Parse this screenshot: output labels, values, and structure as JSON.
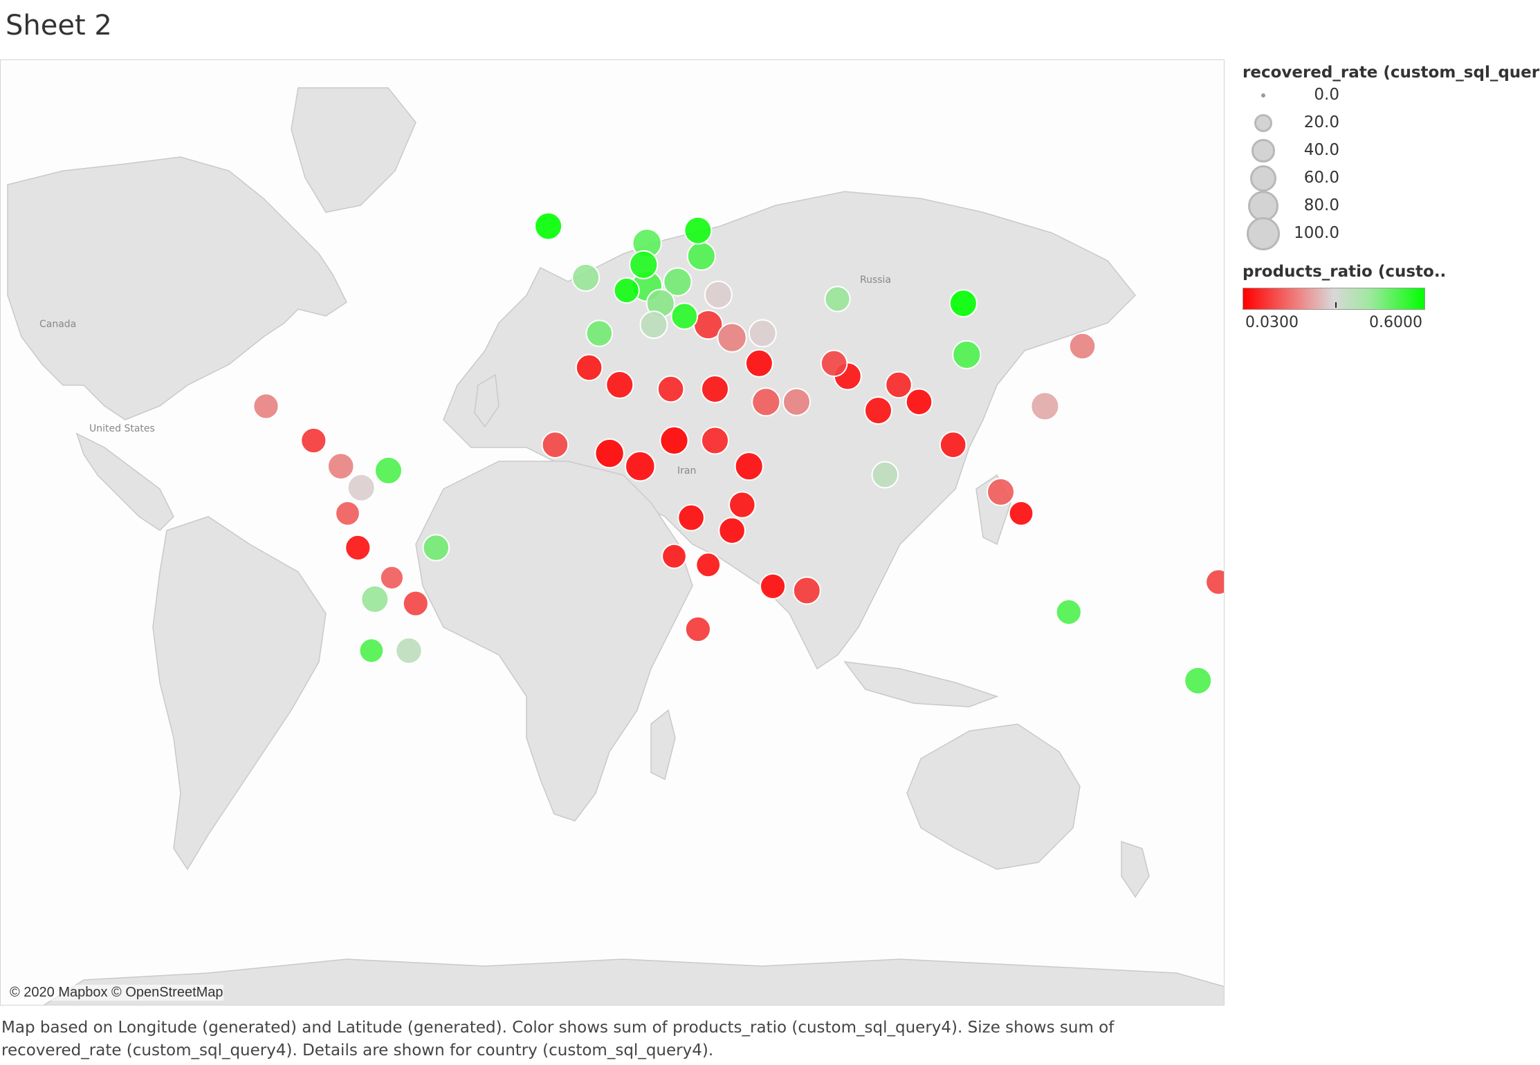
{
  "sheet": {
    "title": "Sheet 2"
  },
  "map": {
    "attribution": "© 2020 Mapbox © OpenStreetMap",
    "place_labels": [
      "Canada",
      "United States",
      "Russia",
      "Iran"
    ],
    "bubble_opacity": 0.9
  },
  "caption": "Map based on Longitude (generated) and Latitude (generated).  Color shows sum of products_ratio (custom_sql_query4).  Size shows sum of recovered_rate (custom_sql_query4).  Details are shown for country (custom_sql_query4).",
  "size_legend": {
    "title": "recovered_rate (custom_sql_query4)",
    "items": [
      {
        "label": "0.0",
        "value": 0
      },
      {
        "label": "20.0",
        "value": 20
      },
      {
        "label": "40.0",
        "value": 40
      },
      {
        "label": "60.0",
        "value": 60
      },
      {
        "label": "80.0",
        "value": 80
      },
      {
        "label": "100.0",
        "value": 100
      }
    ]
  },
  "color_legend": {
    "title": "products_ratio (custo..",
    "min_label": "0.0300",
    "max_label": "0.6000",
    "min": 0.03,
    "max": 0.6,
    "colors": {
      "low": "#ff0000",
      "mid": "#d8d8d8",
      "high": "#00ff00"
    }
  },
  "chart_data": {
    "type": "scatter",
    "points": [
      {
        "lon": -19,
        "lat": 65,
        "size": 60,
        "color": 0.6
      },
      {
        "lon": 10,
        "lat": 61,
        "size": 70,
        "color": 0.48
      },
      {
        "lon": 25,
        "lat": 64,
        "size": 60,
        "color": 0.58
      },
      {
        "lon": 26,
        "lat": 58,
        "size": 65,
        "color": 0.5
      },
      {
        "lon": 9,
        "lat": 56,
        "size": 65,
        "color": 0.56
      },
      {
        "lon": -8,
        "lat": 53,
        "size": 60,
        "color": 0.4
      },
      {
        "lon": 10,
        "lat": 51,
        "size": 80,
        "color": 0.5
      },
      {
        "lon": 19,
        "lat": 52,
        "size": 65,
        "color": 0.45
      },
      {
        "lon": 4,
        "lat": 50,
        "size": 50,
        "color": 0.58
      },
      {
        "lon": 14,
        "lat": 47,
        "size": 65,
        "color": 0.42
      },
      {
        "lon": 31,
        "lat": 49,
        "size": 60,
        "color": 0.3
      },
      {
        "lon": 21,
        "lat": 44,
        "size": 55,
        "color": 0.55
      },
      {
        "lon": -4,
        "lat": 40,
        "size": 55,
        "color": 0.45
      },
      {
        "lon": 12,
        "lat": 42,
        "size": 60,
        "color": 0.35
      },
      {
        "lon": 28,
        "lat": 42,
        "size": 70,
        "color": 0.1
      },
      {
        "lon": 35,
        "lat": 39,
        "size": 70,
        "color": 0.2
      },
      {
        "lon": 44,
        "lat": 40,
        "size": 60,
        "color": 0.3
      },
      {
        "lon": 66,
        "lat": 48,
        "size": 50,
        "color": 0.4
      },
      {
        "lon": 103,
        "lat": 47,
        "size": 60,
        "color": 0.6
      },
      {
        "lon": 104,
        "lat": 35,
        "size": 65,
        "color": 0.5
      },
      {
        "lon": 138,
        "lat": 37,
        "size": 55,
        "color": 0.2
      },
      {
        "lon": 127,
        "lat": 23,
        "size": 65,
        "color": 0.25
      },
      {
        "lon": 78,
        "lat": 22,
        "size": 60,
        "color": 0.05
      },
      {
        "lon": 84,
        "lat": 28,
        "size": 55,
        "color": 0.08
      },
      {
        "lon": 90,
        "lat": 24,
        "size": 55,
        "color": 0.04
      },
      {
        "lon": 69,
        "lat": 30,
        "size": 60,
        "color": 0.05
      },
      {
        "lon": 65,
        "lat": 33,
        "size": 55,
        "color": 0.12
      },
      {
        "lon": 54,
        "lat": 24,
        "size": 60,
        "color": 0.2
      },
      {
        "lon": 45,
        "lat": 24,
        "size": 65,
        "color": 0.15
      },
      {
        "lon": 43,
        "lat": 33,
        "size": 60,
        "color": 0.04
      },
      {
        "lon": 30,
        "lat": 27,
        "size": 60,
        "color": 0.05
      },
      {
        "lon": 17,
        "lat": 27,
        "size": 55,
        "color": 0.08
      },
      {
        "lon": 2,
        "lat": 28,
        "size": 60,
        "color": 0.05
      },
      {
        "lon": -7,
        "lat": 32,
        "size": 55,
        "color": 0.06
      },
      {
        "lon": -17,
        "lat": 14,
        "size": 55,
        "color": 0.12
      },
      {
        "lon": -1,
        "lat": 12,
        "size": 70,
        "color": 0.03
      },
      {
        "lon": 8,
        "lat": 9,
        "size": 75,
        "color": 0.04
      },
      {
        "lon": 18,
        "lat": 15,
        "size": 65,
        "color": 0.03
      },
      {
        "lon": 30,
        "lat": 15,
        "size": 60,
        "color": 0.08
      },
      {
        "lon": 40,
        "lat": 9,
        "size": 65,
        "color": 0.04
      },
      {
        "lon": 38,
        "lat": 0,
        "size": 55,
        "color": 0.05
      },
      {
        "lon": 23,
        "lat": -3,
        "size": 55,
        "color": 0.04
      },
      {
        "lon": 18,
        "lat": -12,
        "size": 45,
        "color": 0.06
      },
      {
        "lon": 35,
        "lat": -6,
        "size": 55,
        "color": 0.04
      },
      {
        "lon": 28,
        "lat": -14,
        "size": 45,
        "color": 0.05
      },
      {
        "lon": 47,
        "lat": -19,
        "size": 50,
        "color": 0.04
      },
      {
        "lon": 57,
        "lat": -20,
        "size": 60,
        "color": 0.1
      },
      {
        "lon": 25,
        "lat": -29,
        "size": 50,
        "color": 0.1
      },
      {
        "lon": 114,
        "lat": 3,
        "size": 60,
        "color": 0.15
      },
      {
        "lon": 120,
        "lat": -2,
        "size": 45,
        "color": 0.04
      },
      {
        "lon": 80,
        "lat": 7,
        "size": 55,
        "color": 0.35
      },
      {
        "lon": 100,
        "lat": 14,
        "size": 55,
        "color": 0.06
      },
      {
        "lon": 134,
        "lat": -25,
        "size": 50,
        "color": 0.5
      },
      {
        "lon": 172,
        "lat": -41,
        "size": 60,
        "color": 0.5
      },
      {
        "lon": 178,
        "lat": -18,
        "size": 50,
        "color": 0.12
      },
      {
        "lon": -102,
        "lat": 23,
        "size": 50,
        "color": 0.2
      },
      {
        "lon": -88,
        "lat": 15,
        "size": 50,
        "color": 0.1
      },
      {
        "lon": -80,
        "lat": 9,
        "size": 55,
        "color": 0.2
      },
      {
        "lon": -66,
        "lat": 8,
        "size": 60,
        "color": 0.5
      },
      {
        "lon": -74,
        "lat": 4,
        "size": 60,
        "color": 0.3
      },
      {
        "lon": -78,
        "lat": -2,
        "size": 45,
        "color": 0.15
      },
      {
        "lon": -75,
        "lat": -10,
        "size": 50,
        "color": 0.05
      },
      {
        "lon": -52,
        "lat": -10,
        "size": 55,
        "color": 0.45
      },
      {
        "lon": -65,
        "lat": -17,
        "size": 40,
        "color": 0.15
      },
      {
        "lon": -58,
        "lat": -23,
        "size": 50,
        "color": 0.12
      },
      {
        "lon": -70,
        "lat": -22,
        "size": 60,
        "color": 0.4
      },
      {
        "lon": -71,
        "lat": -34,
        "size": 45,
        "color": 0.5
      },
      {
        "lon": -60,
        "lat": -34,
        "size": 55,
        "color": 0.35
      }
    ]
  }
}
